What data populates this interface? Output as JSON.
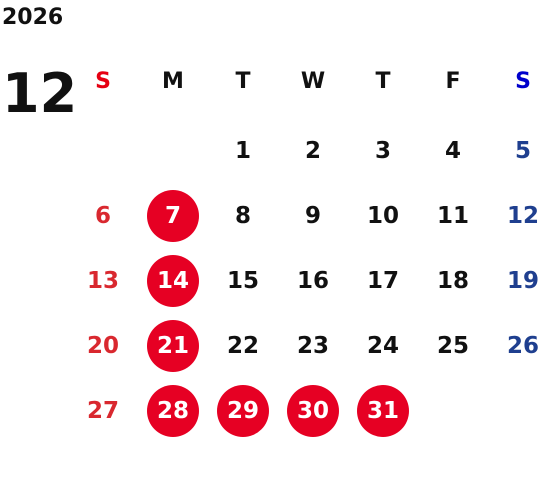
{
  "header": {
    "year": "2026",
    "month": "12"
  },
  "weekdays": [
    {
      "label": "S",
      "kind": "sunday"
    },
    {
      "label": "M",
      "kind": "weekday"
    },
    {
      "label": "T",
      "kind": "weekday"
    },
    {
      "label": "W",
      "kind": "weekday"
    },
    {
      "label": "T",
      "kind": "weekday"
    },
    {
      "label": "F",
      "kind": "weekday"
    },
    {
      "label": "S",
      "kind": "saturday"
    }
  ],
  "first_weekday_index": 2,
  "days": [
    {
      "label": "1"
    },
    {
      "label": "2"
    },
    {
      "label": "3"
    },
    {
      "label": "4"
    },
    {
      "label": "5"
    },
    {
      "label": "6"
    },
    {
      "label": "7",
      "highlighted": true
    },
    {
      "label": "8"
    },
    {
      "label": "9"
    },
    {
      "label": "10"
    },
    {
      "label": "11"
    },
    {
      "label": "12"
    },
    {
      "label": "13"
    },
    {
      "label": "14",
      "highlighted": true
    },
    {
      "label": "15"
    },
    {
      "label": "16"
    },
    {
      "label": "17"
    },
    {
      "label": "18"
    },
    {
      "label": "19"
    },
    {
      "label": "20"
    },
    {
      "label": "21",
      "highlighted": true
    },
    {
      "label": "22"
    },
    {
      "label": "23"
    },
    {
      "label": "24"
    },
    {
      "label": "25"
    },
    {
      "label": "26"
    },
    {
      "label": "27"
    },
    {
      "label": "28",
      "highlighted": true
    },
    {
      "label": "29",
      "highlighted": true
    },
    {
      "label": "30",
      "highlighted": true
    },
    {
      "label": "31",
      "highlighted": true
    }
  ],
  "colors": {
    "text": "#111111",
    "sunday_header": "#e60012",
    "saturday_header": "#0000cc",
    "sunday_day": "#d9282f",
    "saturday_day": "#1f3f8f",
    "highlight_bg": "#e60023",
    "highlight_text": "#ffffff"
  }
}
